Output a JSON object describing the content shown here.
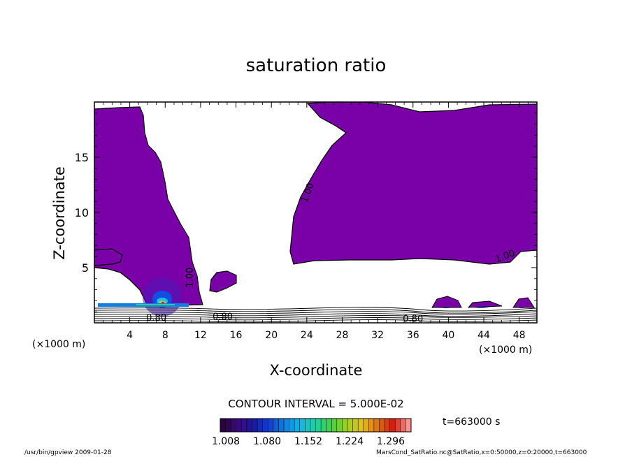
{
  "chart_data": {
    "type": "contour",
    "title": "saturation ratio",
    "xlabel": "X-coordinate",
    "ylabel": "Z-coordinate",
    "x_unit": "(×1000 m)",
    "z_unit": "(×1000 m)",
    "xlim": [
      0,
      50
    ],
    "ylim": [
      0,
      20
    ],
    "x_ticks": [
      4,
      8,
      12,
      16,
      20,
      24,
      28,
      32,
      36,
      40,
      44,
      48
    ],
    "y_ticks": [
      5,
      10,
      15
    ],
    "contour_labels": [
      {
        "text": "1.00",
        "x": 24.4,
        "z": 11.7
      },
      {
        "text": "1.00",
        "x": 46.5,
        "z": 5.8
      },
      {
        "text": "1.00",
        "x": 11.1,
        "z": 4.1
      },
      {
        "text": "0.80",
        "x": 7.0,
        "z": 0.2
      },
      {
        "text": "0.80",
        "x": 14.5,
        "z": 0.3
      },
      {
        "text": "0.80",
        "x": 36.0,
        "z": 0.1
      }
    ],
    "contour_interval_text": "CONTOUR INTERVAL = 5.000E-02",
    "colorbar": {
      "ticks": [
        "1.008",
        "1.080",
        "1.152",
        "1.224",
        "1.296"
      ],
      "colors": [
        "#2b0040",
        "#3a0a7a",
        "#1a1aa8",
        "#1040d0",
        "#1080e0",
        "#10b8e8",
        "#20d0a0",
        "#40d040",
        "#a0d020",
        "#e0c020",
        "#e07010",
        "#d02010",
        "#ff9090"
      ]
    },
    "time_label": "t=663000 s",
    "footer_left": "/usr/bin/gpview   2009-01-28",
    "footer_right": "MarsCond_SatRatio.nc@SatRatio,x=0:50000,z=0:20000,t=663000"
  }
}
